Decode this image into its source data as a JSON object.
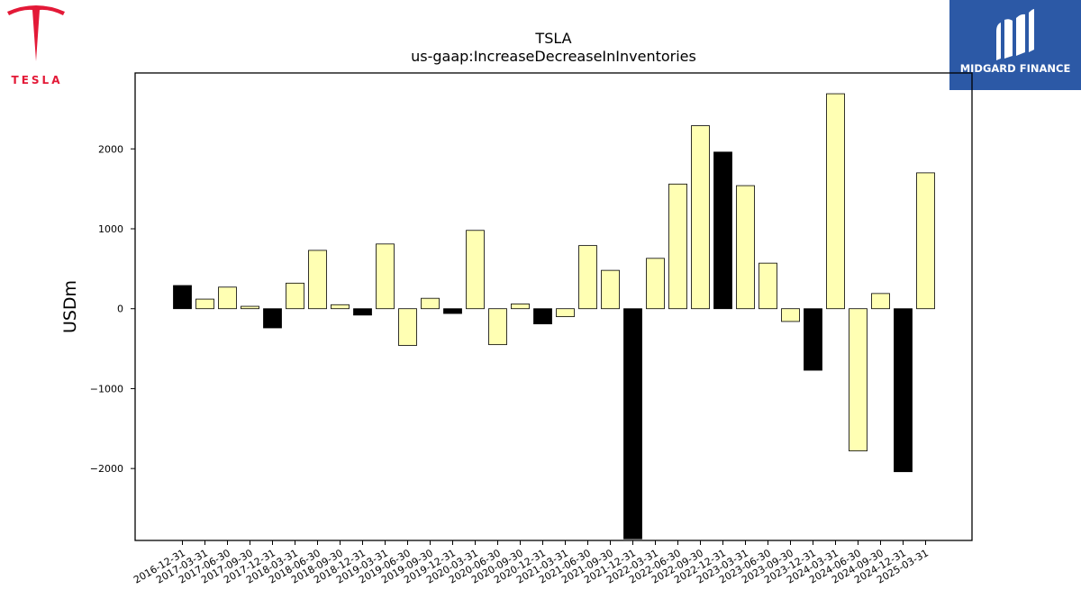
{
  "logos": {
    "left": {
      "wordmark": "TESLA",
      "color": "#e31937"
    },
    "right": {
      "wordmark": "MIDGARD FINANCE",
      "background": "#2c59a6"
    }
  },
  "chart_data": {
    "type": "bar",
    "title": "TSLA",
    "subtitle": "us-gaap:IncreaseDecreaseInInventories",
    "xlabel": "",
    "ylabel": "USDm",
    "ylim": [
      -2900,
      2950
    ],
    "yticks": [
      -2000,
      -1000,
      0,
      1000,
      2000
    ],
    "ytick_labels": [
      "−2000",
      "−1000",
      "0",
      "1000",
      "2000"
    ],
    "grid": false,
    "legend": "none",
    "colors": {
      "quarterly": "#ffffb3",
      "annual": "#000000",
      "edge": "#000000"
    },
    "categories": [
      "2016-12-31",
      "2017-03-31",
      "2017-06-30",
      "2017-09-30",
      "2017-12-31",
      "2018-03-31",
      "2018-06-30",
      "2018-09-30",
      "2018-12-31",
      "2019-03-31",
      "2019-06-30",
      "2019-09-30",
      "2019-12-31",
      "2020-03-31",
      "2020-06-30",
      "2020-09-30",
      "2020-12-31",
      "2021-03-31",
      "2021-06-30",
      "2021-09-30",
      "2021-12-31",
      "2022-03-31",
      "2022-06-30",
      "2022-09-30",
      "2022-12-31",
      "2023-03-31",
      "2023-06-30",
      "2023-09-30",
      "2023-12-31",
      "2024-03-31",
      "2024-06-30",
      "2024-09-30",
      "2024-12-31",
      "2025-03-31"
    ],
    "values": [
      290,
      120,
      270,
      30,
      -240,
      320,
      730,
      50,
      -80,
      810,
      -460,
      130,
      -60,
      980,
      -450,
      60,
      -190,
      -100,
      790,
      480,
      -2880,
      630,
      1560,
      2290,
      1960,
      1540,
      570,
      -160,
      -770,
      2690,
      -1780,
      190,
      -2040,
      1700
    ],
    "is_annual": [
      true,
      false,
      false,
      false,
      true,
      false,
      false,
      false,
      true,
      false,
      false,
      false,
      true,
      false,
      false,
      false,
      true,
      false,
      false,
      false,
      true,
      false,
      false,
      false,
      true,
      false,
      false,
      false,
      true,
      false,
      false,
      false,
      true,
      false
    ]
  }
}
